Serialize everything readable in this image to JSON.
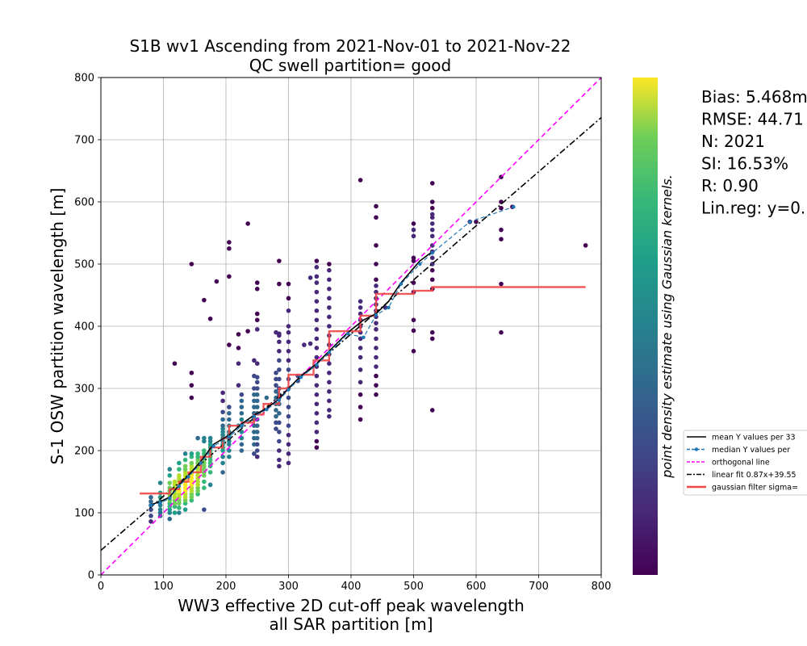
{
  "chart_data": {
    "type": "scatter",
    "title": "S1B wv1 Ascending from 2021-Nov-01 to 2021-Nov-22",
    "subtitle": "QC swell partition= good",
    "xlabel_line1": "WW3 effective 2D cut-off peak wavelength",
    "xlabel_line2": "all SAR partition [m]",
    "ylabel": "S-1 OSW partition wavelength [m]",
    "xlim": [
      0,
      800
    ],
    "ylim": [
      0,
      800
    ],
    "xticks": [
      0,
      100,
      200,
      300,
      400,
      500,
      600,
      700,
      800
    ],
    "yticks": [
      0,
      100,
      200,
      300,
      400,
      500,
      600,
      700,
      800
    ],
    "grid": true,
    "colorbar_label": "point density estimate using Gaussian kernels.",
    "colormap": "viridis",
    "stats": [
      "Bias: 5.468m",
      "RMSE: 44.71",
      "N: 2021",
      "SI: 16.53%",
      "R: 0.90",
      "Lin.reg: y=0."
    ],
    "legend_position": "right-outside",
    "legend": [
      {
        "label": "mean Y values per 33",
        "style": "solid",
        "color": "#000000"
      },
      {
        "label": "median Y values per",
        "style": "dashed-marker",
        "color": "#1f77b4"
      },
      {
        "label": "orthogonal line",
        "style": "dashed",
        "color": "#ff00ff"
      },
      {
        "label": "linear fit 0.87x+39.55",
        "style": "dashdot",
        "color": "#000000"
      },
      {
        "label": "gaussian filter sigma=",
        "style": "solid-thick",
        "color": "#f04848"
      }
    ],
    "orthogonal_line": {
      "x": [
        0,
        800
      ],
      "y": [
        0,
        800
      ],
      "color": "#ff00ff"
    },
    "linear_fit": {
      "slope": 0.87,
      "intercept": 39.55,
      "x": [
        0,
        800
      ],
      "color": "#000000"
    },
    "mean_line": {
      "color": "#000000",
      "x": [
        80,
        95,
        110,
        125,
        140,
        160,
        180,
        205,
        225,
        245,
        265,
        285,
        300,
        320,
        345,
        365,
        395,
        420,
        440,
        460,
        480,
        510,
        530
      ],
      "y": [
        113,
        118,
        125,
        145,
        160,
        183,
        210,
        225,
        243,
        257,
        268,
        283,
        300,
        320,
        340,
        360,
        390,
        410,
        420,
        440,
        470,
        505,
        520
      ]
    },
    "median_line": {
      "color": "#1f77b4",
      "x": [
        80,
        95,
        110,
        125,
        140,
        160,
        180,
        205,
        225,
        245,
        265,
        285,
        300,
        320,
        345,
        365,
        395,
        420,
        440,
        460,
        480,
        510,
        530,
        590,
        660
      ],
      "y": [
        112,
        116,
        123,
        143,
        158,
        180,
        207,
        222,
        240,
        255,
        266,
        281,
        298,
        318,
        338,
        358,
        388,
        382,
        418,
        430,
        468,
        500,
        518,
        568,
        592
      ]
    },
    "gaussian_line": {
      "color": "#f04848",
      "x": [
        62,
        110,
        110,
        125,
        125,
        140,
        140,
        160,
        160,
        175,
        175,
        195,
        195,
        205,
        205,
        225,
        225,
        245,
        245,
        260,
        260,
        285,
        285,
        300,
        300,
        340,
        340,
        365,
        365,
        415,
        415,
        440,
        440,
        500,
        500,
        530,
        530,
        775
      ],
      "y": [
        131,
        131,
        138,
        138,
        150,
        150,
        165,
        165,
        190,
        190,
        205,
        205,
        220,
        220,
        240,
        240,
        245,
        245,
        258,
        258,
        275,
        275,
        300,
        300,
        322,
        322,
        345,
        345,
        392,
        392,
        417,
        417,
        452,
        452,
        457,
        457,
        463,
        463
      ]
    },
    "scatter_columns": [
      {
        "x": 80,
        "y": [
          86,
          95,
          105,
          112,
          118,
          125
        ]
      },
      {
        "x": 95,
        "y": [
          95,
          100,
          105,
          112,
          118,
          125,
          132,
          148
        ]
      },
      {
        "x": 110,
        "y": [
          90,
          100,
          105,
          110,
          115,
          120,
          125,
          130,
          135,
          140,
          148,
          160,
          170
        ]
      },
      {
        "x": 118,
        "y": [
          100,
          110,
          115,
          120,
          125,
          130,
          135,
          140,
          145,
          150,
          340
        ]
      },
      {
        "x": 125,
        "y": [
          100,
          108,
          115,
          120,
          125,
          130,
          135,
          140,
          145,
          150,
          155,
          160,
          170,
          180
        ]
      },
      {
        "x": 135,
        "y": [
          105,
          115,
          120,
          125,
          130,
          135,
          140,
          145,
          150,
          155,
          160,
          165,
          170,
          175,
          185,
          195
        ]
      },
      {
        "x": 145,
        "y": [
          120,
          125,
          130,
          135,
          140,
          145,
          150,
          155,
          160,
          165,
          170,
          175,
          180,
          190,
          195,
          285,
          305,
          325,
          500
        ]
      },
      {
        "x": 155,
        "y": [
          130,
          135,
          140,
          145,
          150,
          155,
          160,
          165,
          170,
          175,
          180,
          185,
          190,
          195,
          220
        ]
      },
      {
        "x": 165,
        "y": [
          105,
          140,
          150,
          160,
          165,
          170,
          175,
          180,
          185,
          190,
          195,
          200,
          215,
          220,
          442
        ]
      },
      {
        "x": 175,
        "y": [
          145,
          165,
          175,
          180,
          185,
          190,
          195,
          200,
          205,
          210,
          215,
          220,
          412
        ]
      },
      {
        "x": 185,
        "y": [
          472
        ]
      },
      {
        "x": 195,
        "y": [
          165,
          180,
          190,
          200,
          205,
          210,
          215,
          220,
          225,
          230,
          235,
          240,
          250,
          262,
          280,
          293
        ]
      },
      {
        "x": 205,
        "y": [
          190,
          200,
          210,
          215,
          220,
          225,
          230,
          240,
          250,
          260,
          270,
          370,
          480,
          525,
          535
        ]
      },
      {
        "x": 220,
        "y": [
          240,
          305,
          340,
          365,
          387
        ]
      },
      {
        "x": 225,
        "y": [
          200,
          210,
          220,
          230,
          240,
          250,
          260,
          270,
          280,
          290
        ]
      },
      {
        "x": 235,
        "y": [
          392,
          565
        ]
      },
      {
        "x": 245,
        "y": [
          195,
          210,
          220,
          230,
          240,
          250,
          260,
          270,
          280,
          290,
          300,
          320,
          345
        ]
      },
      {
        "x": 250,
        "y": [
          190,
          200,
          210,
          220,
          230,
          240,
          250,
          260,
          270,
          280,
          290,
          300,
          310,
          318,
          340,
          395,
          410,
          420,
          460,
          470
        ]
      },
      {
        "x": 265,
        "y": [
          285
        ]
      },
      {
        "x": 280,
        "y": [
          235,
          245,
          255,
          265,
          275,
          285,
          295,
          305,
          315,
          325,
          390
        ]
      },
      {
        "x": 285,
        "y": [
          175,
          185,
          200,
          215,
          230,
          245,
          260,
          275,
          290,
          300,
          315,
          330,
          345,
          360,
          375,
          385,
          388,
          468,
          505
        ]
      },
      {
        "x": 300,
        "y": [
          180,
          195,
          210,
          225,
          240,
          255,
          270,
          285,
          300,
          315,
          330,
          345,
          360,
          375,
          390,
          400,
          425,
          445,
          468
        ]
      },
      {
        "x": 315,
        "y": [
          312,
          320
        ]
      },
      {
        "x": 325,
        "y": [
          370
        ]
      },
      {
        "x": 335,
        "y": [
          372,
          478
        ]
      },
      {
        "x": 345,
        "y": [
          205,
          215,
          230,
          245,
          260,
          275,
          290,
          305,
          320,
          335,
          350,
          365,
          380,
          395,
          410,
          425,
          440,
          455,
          470,
          480,
          495,
          505
        ]
      },
      {
        "x": 365,
        "y": [
          255,
          265,
          280,
          295,
          310,
          325,
          340,
          355,
          370,
          385,
          400,
          415,
          430,
          445,
          460,
          475,
          490,
          500
        ]
      },
      {
        "x": 415,
        "y": [
          250,
          270,
          290,
          310,
          330,
          350,
          365,
          380,
          390,
          400,
          410,
          420,
          430,
          440,
          635
        ]
      },
      {
        "x": 440,
        "y": [
          290,
          305,
          320,
          335,
          350,
          365,
          380,
          395,
          405,
          415,
          425,
          435,
          445,
          455,
          465,
          475,
          500,
          530,
          575,
          593
        ]
      },
      {
        "x": 455,
        "y": [
          430
        ]
      },
      {
        "x": 500,
        "y": [
          360,
          393,
          410,
          455,
          470,
          505,
          510,
          545,
          555,
          565
        ]
      },
      {
        "x": 530,
        "y": [
          265,
          380,
          390,
          460,
          475,
          490,
          500,
          510,
          520,
          530,
          545,
          555,
          565,
          575,
          580,
          590,
          600,
          630
        ]
      },
      {
        "x": 590,
        "y": [
          568
        ]
      },
      {
        "x": 600,
        "y": [
          568
        ]
      },
      {
        "x": 640,
        "y": [
          390,
          468,
          540,
          555,
          590,
          600,
          640
        ]
      },
      {
        "x": 658,
        "y": [
          592
        ]
      },
      {
        "x": 775,
        "y": [
          530
        ]
      }
    ]
  }
}
